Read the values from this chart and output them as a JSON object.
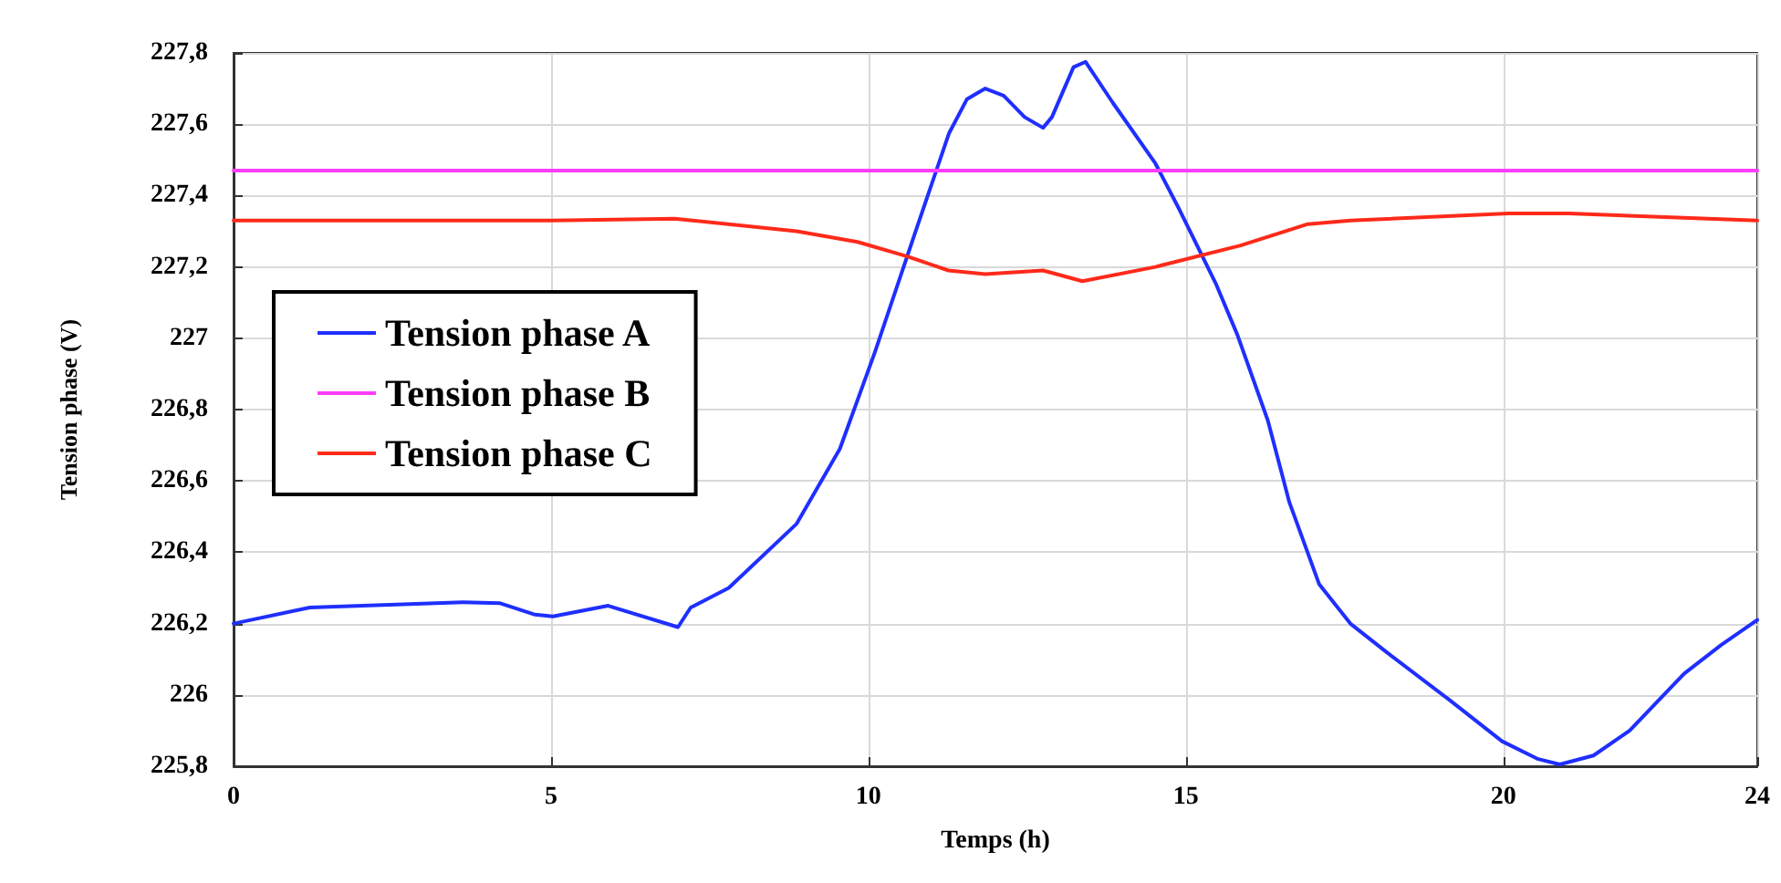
{
  "chart_data": {
    "type": "line",
    "xlabel": "Temps (h)",
    "ylabel": "Tension phase (V)",
    "xlim": [
      0,
      24
    ],
    "xticks": [
      0,
      5,
      10,
      15,
      20,
      24
    ],
    "ylim": [
      225.8,
      227.8
    ],
    "yticks": [
      {
        "value": 225.8,
        "label": "225,8"
      },
      {
        "value": 226,
        "label": "226"
      },
      {
        "value": 226.2,
        "label": "226,2"
      },
      {
        "value": 226.4,
        "label": "226,4"
      },
      {
        "value": 226.6,
        "label": "226,6"
      },
      {
        "value": 226.8,
        "label": "226,8"
      },
      {
        "value": 227,
        "label": "227"
      },
      {
        "value": 227.2,
        "label": "227,2"
      },
      {
        "value": 227.4,
        "label": "227,4"
      },
      {
        "value": 227.6,
        "label": "227,6"
      },
      {
        "value": 227.8,
        "label": "227,8"
      }
    ],
    "grid": true,
    "legend": "left",
    "marker": "none",
    "line_style": "solid",
    "series": [
      {
        "name": "Tension phase A",
        "color": "#1f2fff",
        "x": [
          0,
          1.2,
          3.6,
          4.2,
          4.75,
          5.03,
          5.9,
          7.0,
          7.2,
          7.8,
          8.87,
          9.55,
          10.1,
          10.8,
          11.27,
          11.55,
          11.84,
          12.13,
          12.46,
          12.75,
          12.89,
          13.23,
          13.42,
          13.85,
          14.52,
          14.9,
          15.48,
          15.81,
          16.29,
          16.63,
          17.1,
          17.59,
          18.16,
          19.12,
          19.98,
          20.55,
          20.89,
          21.42,
          21.99,
          22.85,
          23.43,
          24
        ],
        "values": [
          226.2,
          226.245,
          226.26,
          226.257,
          226.225,
          226.22,
          226.25,
          226.19,
          226.245,
          226.3,
          226.48,
          226.69,
          226.96,
          227.33,
          227.575,
          227.67,
          227.7,
          227.68,
          227.62,
          227.59,
          227.62,
          227.76,
          227.775,
          227.66,
          227.49,
          227.36,
          227.15,
          227.01,
          226.77,
          226.54,
          226.31,
          226.2,
          226.12,
          225.99,
          225.87,
          225.82,
          225.805,
          225.83,
          225.9,
          226.06,
          226.14,
          226.21
        ]
      },
      {
        "name": "Tension phase B",
        "color": "#ff3cff",
        "x": [
          0,
          24
        ],
        "values": [
          227.47,
          227.47
        ]
      },
      {
        "name": "Tension phase C",
        "color": "#ff2a1a",
        "x": [
          0,
          5,
          6.95,
          8.87,
          9.83,
          10.6,
          11.26,
          11.84,
          12.75,
          13.37,
          14.52,
          15.86,
          16.92,
          17.59,
          20.08,
          21.03,
          24
        ],
        "values": [
          227.33,
          227.33,
          227.335,
          227.3,
          227.27,
          227.23,
          227.19,
          227.18,
          227.19,
          227.16,
          227.2,
          227.26,
          227.32,
          227.33,
          227.35,
          227.35,
          227.33
        ]
      }
    ]
  }
}
